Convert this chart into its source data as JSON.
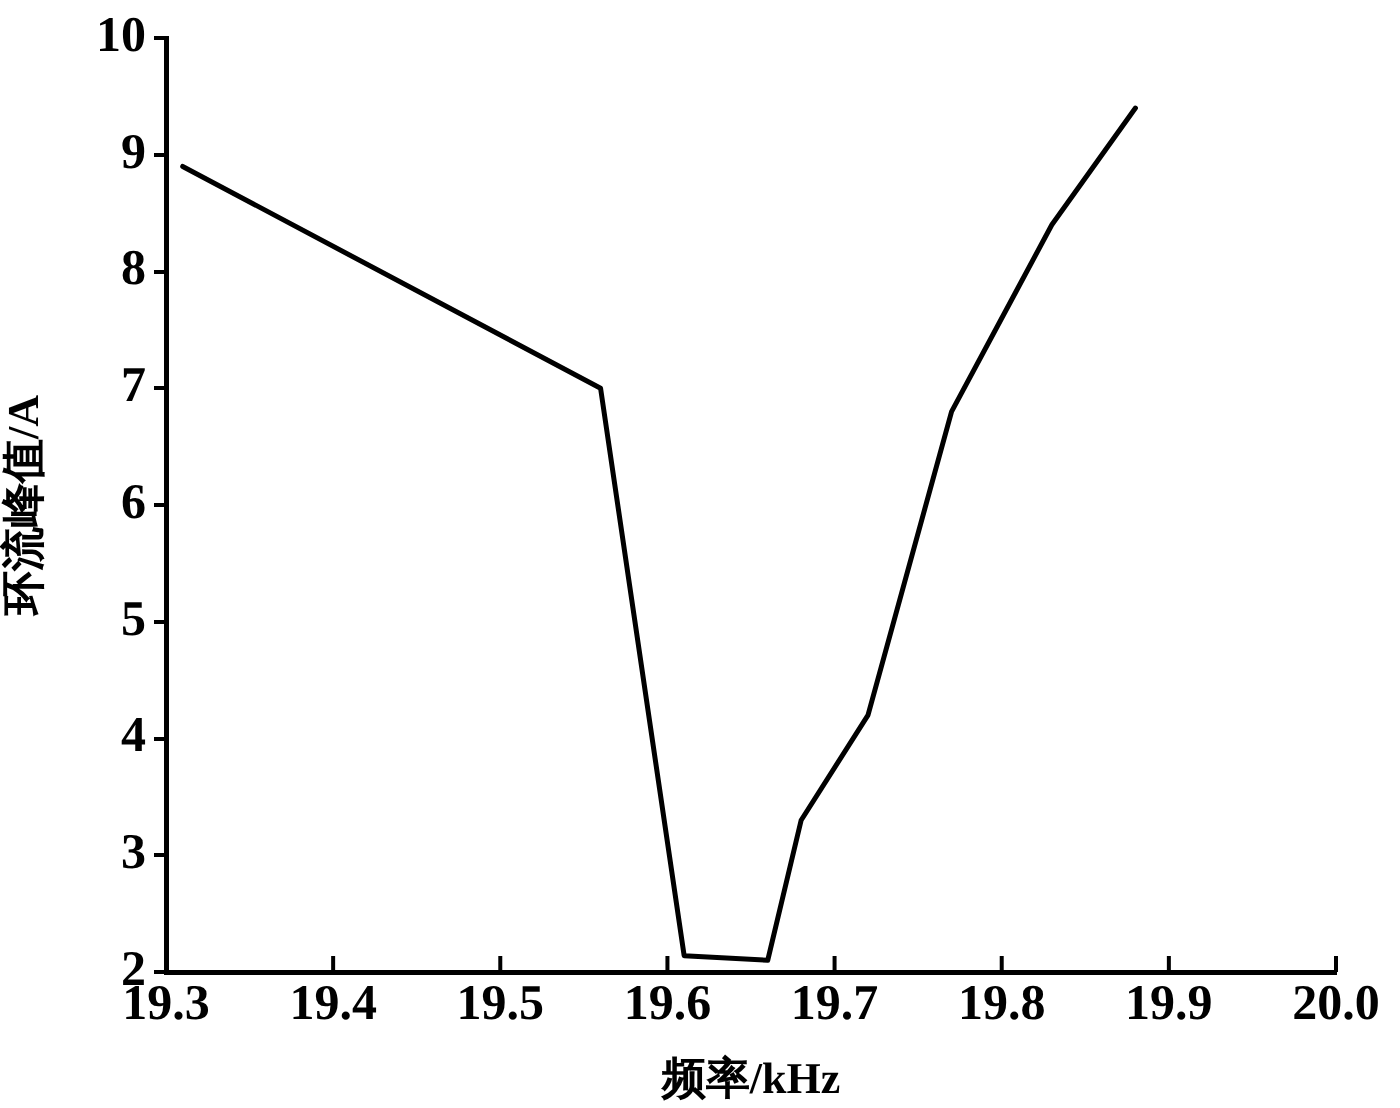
{
  "chart_data": {
    "type": "line",
    "xlabel": "频率/kHz",
    "ylabel": "环流峰值/A",
    "x": [
      19.31,
      19.56,
      19.61,
      19.66,
      19.68,
      19.72,
      19.77,
      19.83,
      19.88
    ],
    "series": [
      {
        "color": "#000000",
        "values": [
          8.9,
          7.0,
          2.14,
          2.1,
          3.3,
          4.2,
          6.8,
          8.4,
          9.4
        ]
      }
    ],
    "xlim": [
      19.3,
      20.0
    ],
    "xticks": [
      19.3,
      19.4,
      19.5,
      19.6,
      19.7,
      19.8,
      19.9,
      {
        "value": 20,
        "label": "20.0"
      }
    ],
    "ylim": [
      2,
      10
    ],
    "yticks": [
      2,
      3,
      4,
      5,
      6,
      7,
      8,
      9,
      10
    ],
    "grid": false,
    "legend": false,
    "marker": "none",
    "line_style": "solid"
  }
}
